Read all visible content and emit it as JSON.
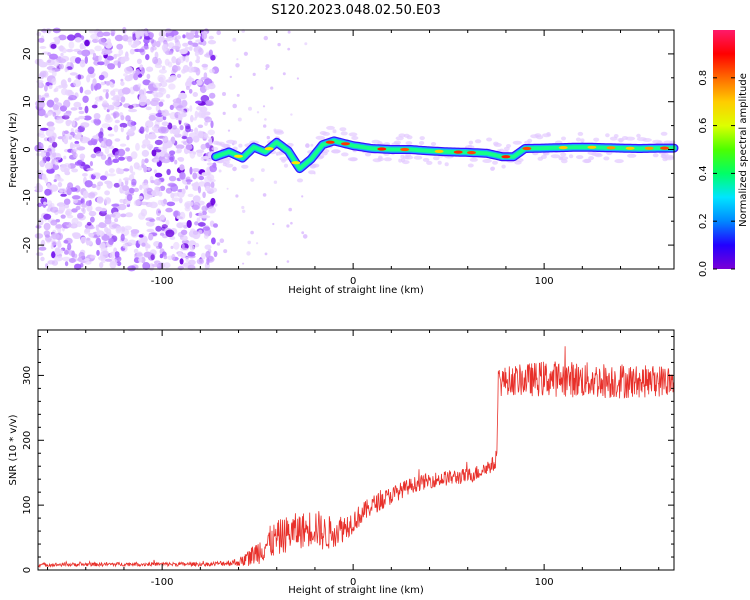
{
  "figure_title": "S120.2023.048.02.50.E03",
  "chart_data": [
    {
      "type": "heatmap",
      "xlabel": "Height of straight line (km)",
      "ylabel": "Frequency (Hz)",
      "xlim": [
        -165,
        168
      ],
      "ylim": [
        -25,
        25
      ],
      "x_ticks": [
        -100,
        0,
        100
      ],
      "y_ticks": [
        -20,
        -10,
        0,
        10,
        20
      ],
      "colorbar": {
        "label": "Normalized spectral amplitude",
        "range": [
          0.0,
          1.0
        ],
        "ticks": [
          0.0,
          0.2,
          0.4,
          0.6,
          0.8
        ],
        "colormap": [
          "#7a00d6",
          "#2200ff",
          "#0088ff",
          "#00e5ff",
          "#00ff66",
          "#4dff00",
          "#ddff00",
          "#ffcc00",
          "#ff6a00",
          "#ff0000",
          "#ff1a6a"
        ]
      },
      "noise_region_x": [
        -165,
        -72
      ],
      "ridge": {
        "x": [
          -72,
          -65,
          -58,
          -52,
          -46,
          -40,
          -34,
          -28,
          -22,
          -16,
          -10,
          0,
          10,
          20,
          30,
          40,
          50,
          60,
          70,
          78,
          84,
          90,
          100,
          110,
          120,
          130,
          140,
          150,
          160,
          168
        ],
        "y": [
          -1.5,
          -0.5,
          -1.8,
          0.5,
          -0.5,
          1.5,
          -0.3,
          -4.0,
          -2.0,
          1.0,
          1.8,
          0.8,
          0.2,
          0.0,
          0.0,
          -0.3,
          -0.5,
          -0.6,
          -0.8,
          -1.5,
          -1.5,
          0.2,
          0.3,
          0.4,
          0.5,
          0.4,
          0.3,
          0.2,
          0.3,
          0.3
        ]
      }
    },
    {
      "type": "line",
      "xlabel": "Height of straight line (km)",
      "ylabel": "SNR (10 * v/v)",
      "xlim": [
        -165,
        168
      ],
      "ylim": [
        0,
        370
      ],
      "x_ticks": [
        -100,
        0,
        100
      ],
      "y_ticks": [
        0,
        100,
        200,
        300
      ],
      "series": [
        {
          "color": "#e8302a",
          "x": [
            -165,
            -120,
            -75,
            -60,
            -55,
            -50,
            -45,
            -40,
            -35,
            -30,
            -25,
            -20,
            -15,
            -10,
            -5,
            0,
            10,
            20,
            30,
            40,
            50,
            60,
            65,
            70,
            75,
            76,
            80,
            90,
            100,
            110,
            120,
            130,
            140,
            150,
            160,
            168
          ],
          "values": [
            8,
            9,
            9,
            12,
            18,
            28,
            40,
            48,
            55,
            60,
            62,
            68,
            55,
            60,
            65,
            75,
            100,
            115,
            130,
            138,
            142,
            145,
            150,
            158,
            165,
            290,
            292,
            293,
            295,
            295,
            293,
            292,
            292,
            290,
            292,
            290
          ],
          "noise_amplitude": [
            3,
            3,
            3,
            6,
            12,
            20,
            25,
            28,
            28,
            28,
            28,
            30,
            28,
            25,
            22,
            18,
            15,
            14,
            12,
            12,
            12,
            12,
            12,
            12,
            12,
            25,
            22,
            25,
            28,
            28,
            28,
            28,
            28,
            25,
            25,
            25
          ]
        }
      ]
    }
  ]
}
